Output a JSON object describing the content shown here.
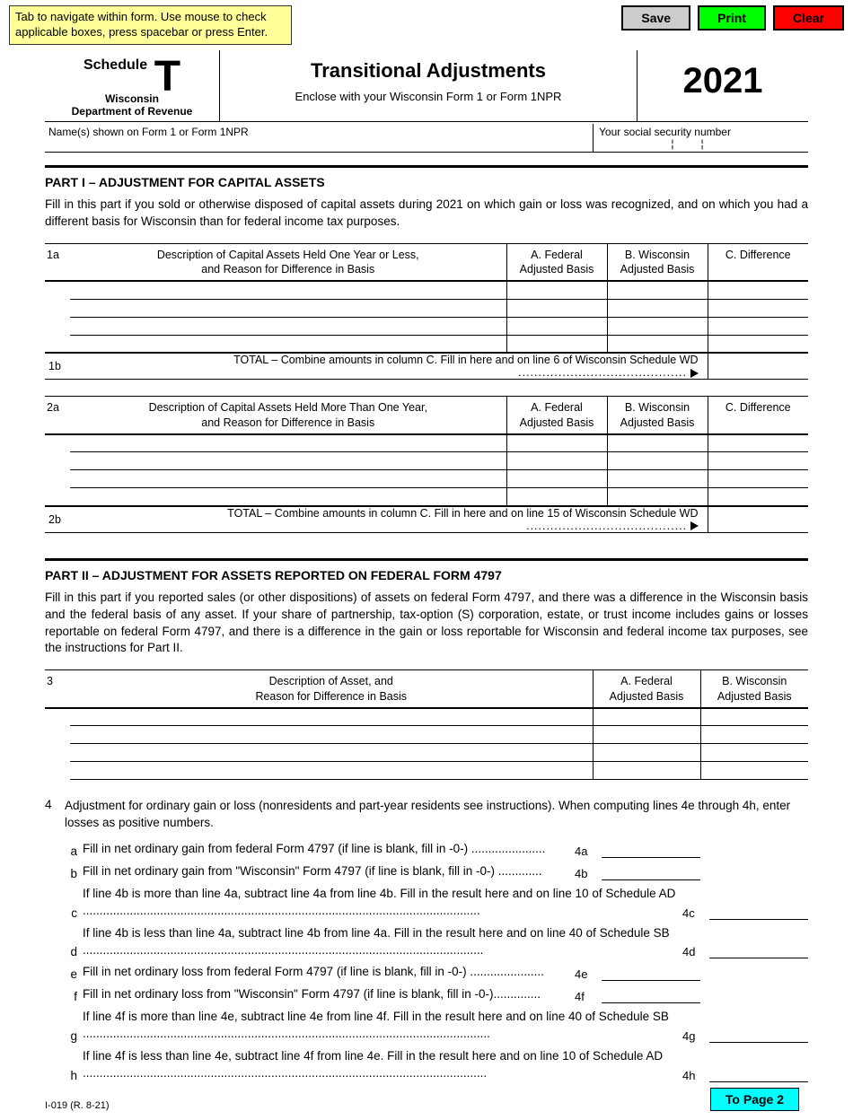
{
  "nav_hint": "Tab to navigate within form. Use mouse to check applicable boxes, press spacebar or press Enter.",
  "buttons": {
    "save": "Save",
    "print": "Print",
    "clear": "Clear",
    "to_page2": "To Page 2"
  },
  "header": {
    "schedule": "Schedule",
    "letter": "T",
    "state": "Wisconsin",
    "dept": "Department of Revenue",
    "title": "Transitional Adjustments",
    "subtitle": "Enclose with your Wisconsin Form 1 or Form 1NPR",
    "year": "2021"
  },
  "name_row": {
    "name_label": "Name(s) shown on Form 1 or Form 1NPR",
    "ssn_label": "Your social security number"
  },
  "part1": {
    "title": "PART I  –  ADJUSTMENT FOR CAPITAL ASSETS",
    "instr": "Fill in this part if you sold or otherwise disposed of capital assets during 2021 on which gain or loss was recognized, and on which you had a different basis for Wisconsin than for federal income tax purposes.",
    "t1": {
      "line": "1a",
      "desc": "Description of Capital Assets Held One Year or Less,\nand Reason for Difference in Basis",
      "colA": "A.  Federal\nAdjusted Basis",
      "colB": "B.  Wisconsin\nAdjusted Basis",
      "colC": "C.  Difference",
      "total_line": "1b",
      "total_text": "TOTAL – Combine amounts in column C. Fill in here and on line 6 of Wisconsin Schedule WD"
    },
    "t2": {
      "line": "2a",
      "desc": "Description of Capital Assets Held More Than One Year,\nand Reason for Difference in Basis",
      "colA": "A.  Federal\nAdjusted Basis",
      "colB": "B.  Wisconsin\nAdjusted Basis",
      "colC": "C.  Difference",
      "total_line": "2b",
      "total_text": "TOTAL – Combine amounts in column C. Fill in here and on line 15 of Wisconsin Schedule WD"
    }
  },
  "part2": {
    "title": "PART II  –  ADJUSTMENT FOR ASSETS REPORTED ON FEDERAL FORM 4797",
    "instr": "Fill in this part if you reported sales (or other dispositions) of assets on federal Form 4797, and there was a difference in the Wisconsin basis and the federal basis of any asset. If your share of partnership, tax-option (S) corporation, estate, or trust income includes gains or losses reportable on federal Form 4797, and there is a difference in the gain or loss reportable for Wisconsin and federal income tax purposes, see the instructions for Part II.",
    "t3": {
      "line": "3",
      "desc": "Description of Asset, and\nReason for Difference in Basis",
      "colA": "A.  Federal\nAdjusted Basis",
      "colB": "B.  Wisconsin\nAdjusted Basis"
    }
  },
  "sec4": {
    "num": "4",
    "head": "Adjustment for ordinary gain or loss (nonresidents and part-year residents see instructions). When computing lines 4e through 4h, enter losses as positive numbers.",
    "rows": {
      "a": {
        "let": "a",
        "txt": "Fill in net ordinary gain from federal Form 4797 (if line is blank, fill in -0-) ......................",
        "lbl": "4a"
      },
      "b": {
        "let": "b",
        "txt": "Fill in net ordinary gain from \"Wisconsin\" Form 4797 (if line is blank, fill in -0-) .............",
        "lbl": "4b"
      },
      "c": {
        "let": "c",
        "txt": "If line 4b is more than line 4a, subtract line 4a from line 4b. Fill in the result here and on line 10 of Schedule AD ......................................................................................................................",
        "lbl": "4c"
      },
      "d": {
        "let": "d",
        "txt": "If line 4b is less than line 4a, subtract line 4b from line 4a. Fill in the result here and on line 40 of Schedule SB .......................................................................................................................",
        "lbl": "4d"
      },
      "e": {
        "let": "e",
        "txt": "Fill in net ordinary loss from federal Form 4797 (if line is blank, fill in -0-) ......................",
        "lbl": "4e"
      },
      "f": {
        "let": "f",
        "txt": "Fill in net ordinary loss from \"Wisconsin\" Form 4797 (if line is blank, fill in -0-)..............",
        "lbl": " 4f"
      },
      "g": {
        "let": "g",
        "txt": "If line 4f is more than line 4e, subtract line 4e from line 4f. Fill in the result here and on line 40 of Schedule SB .........................................................................................................................",
        "lbl": "4g"
      },
      "h": {
        "let": "h",
        "txt": "If line 4f is less than line 4e, subtract line 4f from line 4e. Fill in the result here and on line 10 of Schedule AD ........................................................................................................................",
        "lbl": "4h"
      }
    }
  },
  "form_id": "I-019 (R. 8-21)"
}
